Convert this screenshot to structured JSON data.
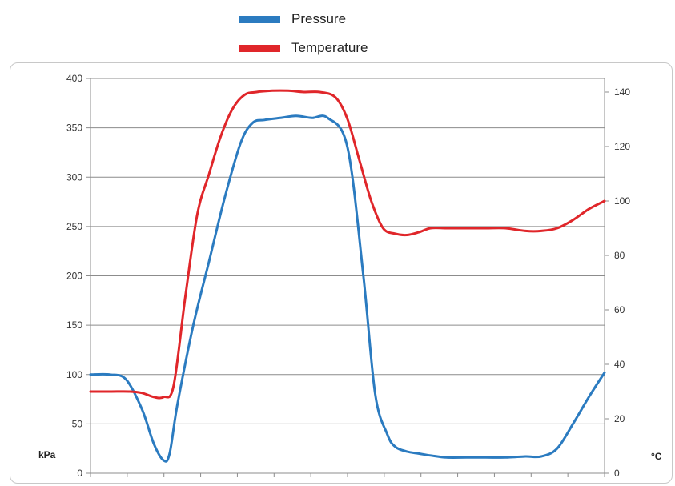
{
  "legend": {
    "items": [
      {
        "label": "Pressure",
        "color": "#2b7bc0"
      },
      {
        "label": "Temperature",
        "color": "#e0262a"
      }
    ]
  },
  "chart_data": {
    "type": "line",
    "title": "",
    "xlabel": "",
    "x_ticks": 14,
    "left_axis": {
      "label": "kPa",
      "ylim": [
        0,
        400
      ],
      "ticks": [
        0,
        50,
        100,
        150,
        200,
        250,
        300,
        350,
        400
      ]
    },
    "right_axis": {
      "label": "°C",
      "ylim": [
        0,
        145
      ],
      "ticks": [
        0,
        20,
        40,
        60,
        80,
        100,
        120,
        140
      ]
    },
    "xlim": [
      0,
      13
    ],
    "grid": true,
    "legend_position": "top",
    "series": [
      {
        "name": "Pressure",
        "axis": "left",
        "color": "#2b7bc0",
        "x": [
          0,
          0.5,
          0.9,
          1.3,
          1.6,
          1.85,
          2.0,
          2.2,
          2.6,
          3.0,
          3.4,
          3.8,
          4.1,
          4.4,
          4.8,
          5.2,
          5.6,
          6.0,
          6.5,
          6.9,
          7.2,
          7.5,
          7.7,
          8.0,
          8.3,
          8.6,
          9.0,
          9.5,
          10.0,
          10.5,
          11.0,
          11.4,
          11.8,
          12.2,
          12.6,
          13.0
        ],
        "y": [
          100,
          100,
          95,
          65,
          30,
          13,
          20,
          70,
          150,
          215,
          280,
          335,
          355,
          358,
          360,
          362,
          360,
          360,
          330,
          200,
          80,
          40,
          27,
          22,
          20,
          18,
          16,
          16,
          16,
          16,
          17,
          17,
          25,
          50,
          77,
          102
        ]
      },
      {
        "name": "Temperature",
        "axis": "right",
        "color": "#e0262a",
        "x": [
          0,
          0.5,
          1.0,
          1.3,
          1.6,
          1.85,
          2.1,
          2.4,
          2.7,
          3.0,
          3.3,
          3.6,
          3.9,
          4.2,
          4.6,
          5.0,
          5.4,
          5.8,
          6.2,
          6.5,
          6.8,
          7.1,
          7.4,
          7.7,
          8.0,
          8.3,
          8.6,
          9.0,
          9.5,
          10.0,
          10.5,
          11.0,
          11.4,
          11.8,
          12.2,
          12.6,
          13.0
        ],
        "y": [
          30,
          30,
          30,
          29.5,
          28,
          28,
          32,
          65,
          95,
          110,
          124,
          134,
          139,
          140,
          140.5,
          140.5,
          140,
          140,
          138,
          130,
          115,
          100,
          90,
          88,
          87.5,
          88.5,
          90,
          90,
          90,
          90,
          90,
          89,
          89,
          90,
          93,
          97,
          100
        ]
      }
    ]
  }
}
